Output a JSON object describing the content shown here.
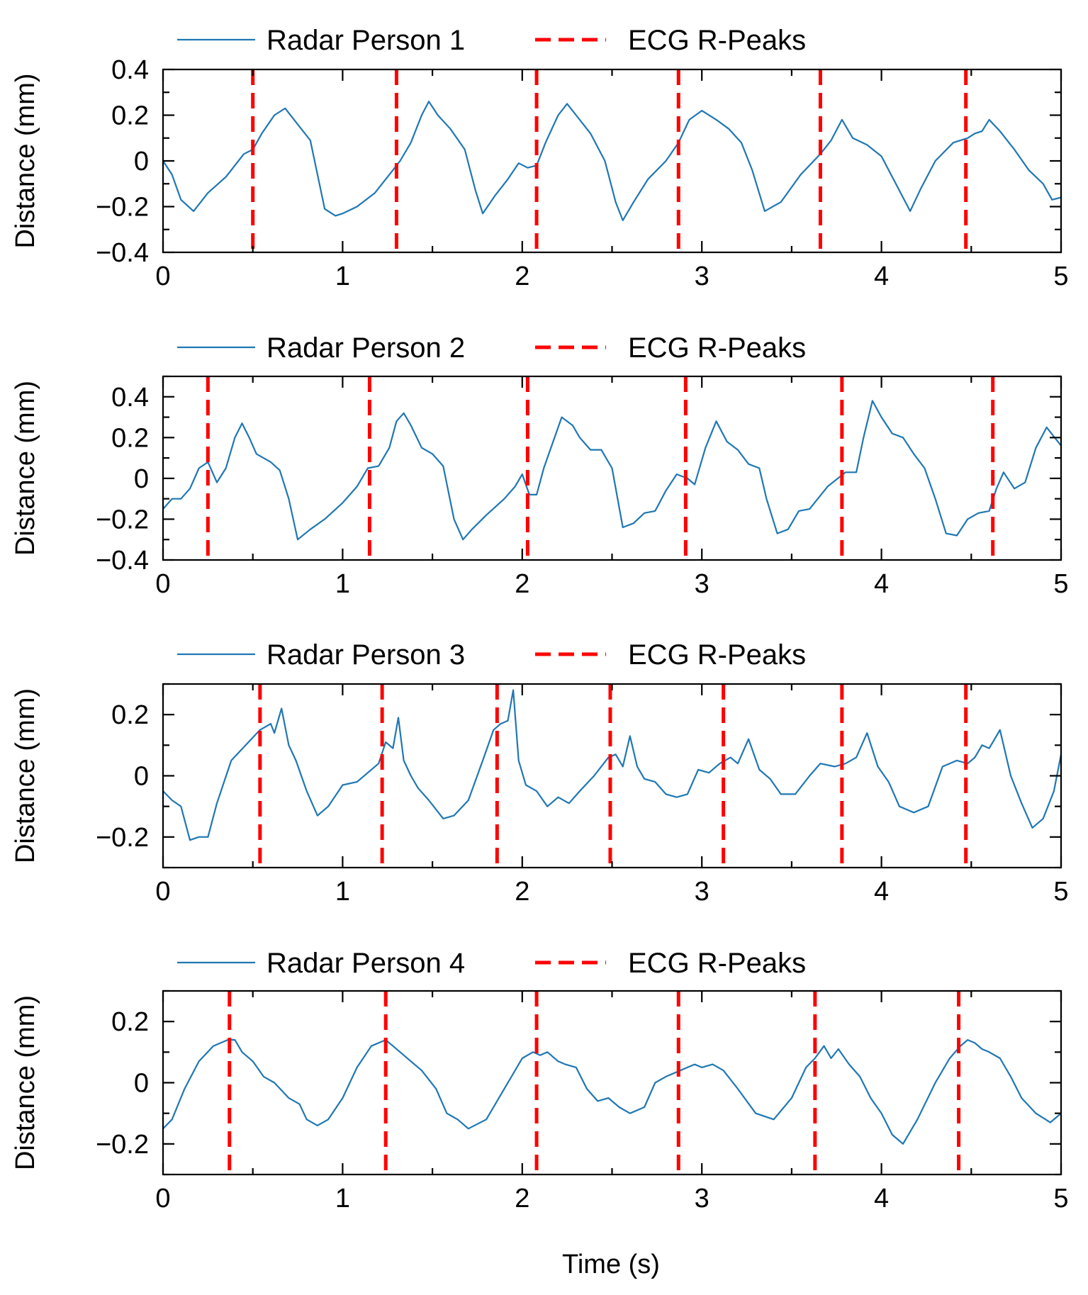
{
  "figure": {
    "xlabel": "Time (s)"
  },
  "colors": {
    "radar": "#1f77b4",
    "ecg": "#ff0000"
  },
  "chart_data": [
    {
      "type": "line",
      "title": "",
      "xlabel": "",
      "ylabel": "Distance (mm)",
      "xlim": [
        0,
        5
      ],
      "ylim": [
        -0.4,
        0.4
      ],
      "xticks": [
        0,
        1,
        2,
        3,
        4,
        5
      ],
      "xtick_labels": [
        "0",
        "1",
        "2",
        "3",
        "4",
        "5"
      ],
      "yticks": [
        -0.4,
        -0.2,
        0,
        0.2,
        0.4
      ],
      "ytick_labels": [
        "−0.4",
        "−0.2",
        "0",
        "0.2",
        "0.4"
      ],
      "minor_ytick_step": 0.1,
      "legend": {
        "position": "top",
        "radar_label": "Radar Person 1",
        "ecg_label": "ECG R-Peaks"
      },
      "series": [
        {
          "name": "Radar Person 1",
          "x": [
            0,
            0.05,
            0.1,
            0.17,
            0.25,
            0.35,
            0.45,
            0.5,
            0.55,
            0.62,
            0.68,
            0.75,
            0.82,
            0.9,
            0.96,
            1.0,
            1.08,
            1.18,
            1.28,
            1.32,
            1.38,
            1.44,
            1.48,
            1.53,
            1.6,
            1.68,
            1.74,
            1.78,
            1.85,
            1.92,
            1.98,
            2.03,
            2.08,
            2.13,
            2.2,
            2.25,
            2.3,
            2.38,
            2.46,
            2.52,
            2.56,
            2.62,
            2.7,
            2.8,
            2.87,
            2.93,
            3.0,
            3.08,
            3.15,
            3.22,
            3.28,
            3.35,
            3.44,
            3.55,
            3.66,
            3.72,
            3.78,
            3.84,
            3.92,
            4.0,
            4.08,
            4.16,
            4.22,
            4.3,
            4.4,
            4.48,
            4.52,
            4.56,
            4.6,
            4.66,
            4.74,
            4.82,
            4.9,
            4.95,
            5.0
          ],
          "y": [
            0.0,
            -0.06,
            -0.17,
            -0.22,
            -0.14,
            -0.07,
            0.03,
            0.05,
            0.12,
            0.2,
            0.23,
            0.16,
            0.09,
            -0.21,
            -0.24,
            -0.23,
            -0.2,
            -0.14,
            -0.04,
            0.0,
            0.08,
            0.2,
            0.26,
            0.2,
            0.14,
            0.05,
            -0.13,
            -0.23,
            -0.15,
            -0.08,
            -0.01,
            -0.03,
            -0.02,
            0.08,
            0.2,
            0.25,
            0.2,
            0.12,
            0.0,
            -0.18,
            -0.26,
            -0.18,
            -0.08,
            0.0,
            0.08,
            0.18,
            0.22,
            0.18,
            0.14,
            0.08,
            -0.04,
            -0.22,
            -0.18,
            -0.06,
            0.03,
            0.09,
            0.18,
            0.1,
            0.07,
            0.02,
            -0.1,
            -0.22,
            -0.12,
            0.0,
            0.08,
            0.1,
            0.12,
            0.13,
            0.18,
            0.13,
            0.05,
            -0.04,
            -0.1,
            -0.17,
            -0.16
          ]
        }
      ],
      "r_peaks": [
        0.5,
        1.3,
        2.08,
        2.87,
        3.66,
        4.47
      ]
    },
    {
      "type": "line",
      "title": "",
      "xlabel": "",
      "ylabel": "Distance (mm)",
      "xlim": [
        0,
        5
      ],
      "ylim": [
        -0.4,
        0.5
      ],
      "xticks": [
        0,
        1,
        2,
        3,
        4,
        5
      ],
      "xtick_labels": [
        "0",
        "1",
        "2",
        "3",
        "4",
        "5"
      ],
      "yticks": [
        -0.4,
        -0.2,
        0,
        0.2,
        0.4
      ],
      "ytick_labels": [
        "−0.4",
        "−0.2",
        "0",
        "0.2",
        "0.4"
      ],
      "minor_ytick_step": 0.1,
      "legend": {
        "position": "top",
        "radar_label": "Radar Person 2",
        "ecg_label": "ECG R-Peaks"
      },
      "series": [
        {
          "name": "Radar Person 2",
          "x": [
            0,
            0.05,
            0.1,
            0.15,
            0.2,
            0.25,
            0.3,
            0.35,
            0.4,
            0.44,
            0.48,
            0.52,
            0.6,
            0.65,
            0.7,
            0.75,
            0.82,
            0.9,
            1.0,
            1.08,
            1.14,
            1.2,
            1.26,
            1.3,
            1.34,
            1.38,
            1.44,
            1.5,
            1.56,
            1.62,
            1.67,
            1.72,
            1.8,
            1.9,
            1.96,
            2.0,
            2.04,
            2.08,
            2.12,
            2.16,
            2.22,
            2.28,
            2.32,
            2.38,
            2.44,
            2.5,
            2.56,
            2.62,
            2.68,
            2.74,
            2.8,
            2.86,
            2.92,
            2.96,
            3.02,
            3.08,
            3.14,
            3.2,
            3.26,
            3.32,
            3.36,
            3.42,
            3.48,
            3.54,
            3.6,
            3.7,
            3.8,
            3.86,
            3.9,
            3.95,
            4.0,
            4.06,
            4.12,
            4.18,
            4.24,
            4.3,
            4.36,
            4.42,
            4.48,
            4.54,
            4.6,
            4.64,
            4.68,
            4.74,
            4.8,
            4.86,
            4.92,
            5.0
          ],
          "y": [
            -0.15,
            -0.1,
            -0.1,
            -0.05,
            0.05,
            0.08,
            -0.02,
            0.05,
            0.2,
            0.27,
            0.2,
            0.12,
            0.08,
            0.04,
            -0.1,
            -0.3,
            -0.25,
            -0.2,
            -0.12,
            -0.04,
            0.05,
            0.06,
            0.15,
            0.28,
            0.32,
            0.26,
            0.15,
            0.12,
            0.06,
            -0.2,
            -0.3,
            -0.25,
            -0.18,
            -0.1,
            -0.04,
            0.02,
            -0.08,
            -0.08,
            0.05,
            0.15,
            0.3,
            0.26,
            0.2,
            0.14,
            0.14,
            0.05,
            -0.24,
            -0.22,
            -0.17,
            -0.16,
            -0.06,
            0.02,
            0.0,
            -0.03,
            0.15,
            0.28,
            0.18,
            0.14,
            0.07,
            0.05,
            -0.1,
            -0.27,
            -0.25,
            -0.16,
            -0.15,
            -0.04,
            0.03,
            0.03,
            0.2,
            0.38,
            0.3,
            0.22,
            0.2,
            0.12,
            0.05,
            -0.1,
            -0.27,
            -0.28,
            -0.2,
            -0.17,
            -0.16,
            -0.05,
            0.03,
            -0.05,
            -0.02,
            0.15,
            0.25,
            0.16
          ]
        }
      ],
      "r_peaks": [
        0.25,
        1.15,
        2.03,
        2.91,
        3.78,
        4.62
      ]
    },
    {
      "type": "line",
      "title": "",
      "xlabel": "",
      "ylabel": "Distance (mm)",
      "xlim": [
        0,
        5
      ],
      "ylim": [
        -0.3,
        0.3
      ],
      "xticks": [
        0,
        1,
        2,
        3,
        4,
        5
      ],
      "xtick_labels": [
        "0",
        "1",
        "2",
        "3",
        "4",
        "5"
      ],
      "yticks": [
        -0.2,
        0,
        0.2
      ],
      "ytick_labels": [
        "−0.2",
        "0",
        "0.2"
      ],
      "minor_ytick_step": 0.1,
      "legend": {
        "position": "top",
        "radar_label": "Radar Person 3",
        "ecg_label": "ECG R-Peaks"
      },
      "series": [
        {
          "name": "Radar Person 3",
          "x": [
            0,
            0.05,
            0.1,
            0.15,
            0.2,
            0.25,
            0.3,
            0.38,
            0.46,
            0.54,
            0.6,
            0.62,
            0.66,
            0.7,
            0.74,
            0.8,
            0.86,
            0.92,
            1.0,
            1.08,
            1.14,
            1.2,
            1.24,
            1.28,
            1.31,
            1.34,
            1.38,
            1.42,
            1.48,
            1.56,
            1.62,
            1.7,
            1.78,
            1.84,
            1.88,
            1.92,
            1.95,
            1.98,
            2.02,
            2.08,
            2.14,
            2.2,
            2.26,
            2.32,
            2.4,
            2.48,
            2.52,
            2.56,
            2.6,
            2.64,
            2.68,
            2.74,
            2.8,
            2.86,
            2.92,
            2.98,
            3.04,
            3.1,
            3.16,
            3.2,
            3.26,
            3.32,
            3.38,
            3.44,
            3.52,
            3.6,
            3.66,
            3.74,
            3.8,
            3.86,
            3.92,
            3.98,
            4.04,
            4.1,
            4.18,
            4.26,
            4.34,
            4.42,
            4.48,
            4.52,
            4.56,
            4.6,
            4.66,
            4.72,
            4.78,
            4.84,
            4.9,
            4.96,
            5.0
          ],
          "y": [
            -0.05,
            -0.08,
            -0.1,
            -0.21,
            -0.2,
            -0.2,
            -0.09,
            0.05,
            0.1,
            0.15,
            0.17,
            0.14,
            0.22,
            0.1,
            0.05,
            -0.05,
            -0.13,
            -0.1,
            -0.03,
            -0.02,
            0.01,
            0.04,
            0.11,
            0.09,
            0.19,
            0.05,
            0.0,
            -0.04,
            -0.08,
            -0.14,
            -0.13,
            -0.08,
            0.05,
            0.15,
            0.17,
            0.18,
            0.28,
            0.05,
            -0.03,
            -0.05,
            -0.1,
            -0.07,
            -0.09,
            -0.05,
            0.0,
            0.06,
            0.07,
            0.03,
            0.13,
            0.03,
            -0.01,
            -0.02,
            -0.06,
            -0.07,
            -0.06,
            0.02,
            0.01,
            0.04,
            0.06,
            0.04,
            0.12,
            0.02,
            -0.01,
            -0.06,
            -0.06,
            0.0,
            0.04,
            0.03,
            0.04,
            0.06,
            0.14,
            0.03,
            -0.02,
            -0.1,
            -0.12,
            -0.1,
            0.03,
            0.05,
            0.04,
            0.06,
            0.1,
            0.09,
            0.15,
            0.0,
            -0.09,
            -0.17,
            -0.14,
            -0.05,
            0.07
          ]
        }
      ],
      "r_peaks": [
        0.54,
        1.22,
        1.86,
        2.49,
        3.12,
        3.78,
        4.47
      ]
    },
    {
      "type": "line",
      "title": "",
      "xlabel": "",
      "ylabel": "Distance (mm)",
      "xlim": [
        0,
        5
      ],
      "ylim": [
        -0.3,
        0.3
      ],
      "xticks": [
        0,
        1,
        2,
        3,
        4,
        5
      ],
      "xtick_labels": [
        "0",
        "1",
        "2",
        "3",
        "4",
        "5"
      ],
      "yticks": [
        -0.2,
        0,
        0.2
      ],
      "ytick_labels": [
        "−0.2",
        "0",
        "0.2"
      ],
      "minor_ytick_step": 0.1,
      "legend": {
        "position": "top",
        "radar_label": "Radar Person 4",
        "ecg_label": "ECG R-Peaks"
      },
      "series": [
        {
          "name": "Radar Person 4",
          "x": [
            0,
            0.05,
            0.12,
            0.2,
            0.28,
            0.36,
            0.4,
            0.44,
            0.5,
            0.56,
            0.62,
            0.7,
            0.76,
            0.8,
            0.86,
            0.92,
            1.0,
            1.08,
            1.16,
            1.24,
            1.28,
            1.32,
            1.38,
            1.44,
            1.52,
            1.58,
            1.64,
            1.7,
            1.8,
            1.9,
            2.0,
            2.06,
            2.1,
            2.14,
            2.2,
            2.24,
            2.3,
            2.36,
            2.42,
            2.48,
            2.54,
            2.6,
            2.68,
            2.74,
            2.8,
            2.88,
            2.92,
            2.96,
            3.0,
            3.06,
            3.12,
            3.2,
            3.3,
            3.4,
            3.5,
            3.58,
            3.63,
            3.68,
            3.72,
            3.76,
            3.82,
            3.88,
            3.94,
            4.0,
            4.06,
            4.12,
            4.2,
            4.3,
            4.38,
            4.44,
            4.48,
            4.52,
            4.56,
            4.6,
            4.66,
            4.72,
            4.78,
            4.86,
            4.94,
            5.0
          ],
          "y": [
            -0.15,
            -0.12,
            -0.02,
            0.07,
            0.12,
            0.14,
            0.14,
            0.1,
            0.07,
            0.02,
            0.0,
            -0.05,
            -0.07,
            -0.12,
            -0.14,
            -0.12,
            -0.05,
            0.05,
            0.12,
            0.14,
            0.12,
            0.1,
            0.07,
            0.04,
            -0.02,
            -0.1,
            -0.12,
            -0.15,
            -0.12,
            -0.02,
            0.08,
            0.1,
            0.09,
            0.1,
            0.07,
            0.06,
            0.05,
            -0.02,
            -0.06,
            -0.05,
            -0.08,
            -0.1,
            -0.08,
            0.0,
            0.02,
            0.04,
            0.05,
            0.06,
            0.05,
            0.06,
            0.04,
            -0.02,
            -0.1,
            -0.12,
            -0.05,
            0.05,
            0.08,
            0.12,
            0.08,
            0.11,
            0.06,
            0.02,
            -0.05,
            -0.1,
            -0.17,
            -0.2,
            -0.12,
            0.0,
            0.08,
            0.12,
            0.14,
            0.13,
            0.11,
            0.1,
            0.08,
            0.02,
            -0.05,
            -0.1,
            -0.13,
            -0.1
          ]
        }
      ],
      "r_peaks": [
        0.37,
        1.24,
        2.08,
        2.87,
        3.63,
        4.43
      ]
    }
  ]
}
